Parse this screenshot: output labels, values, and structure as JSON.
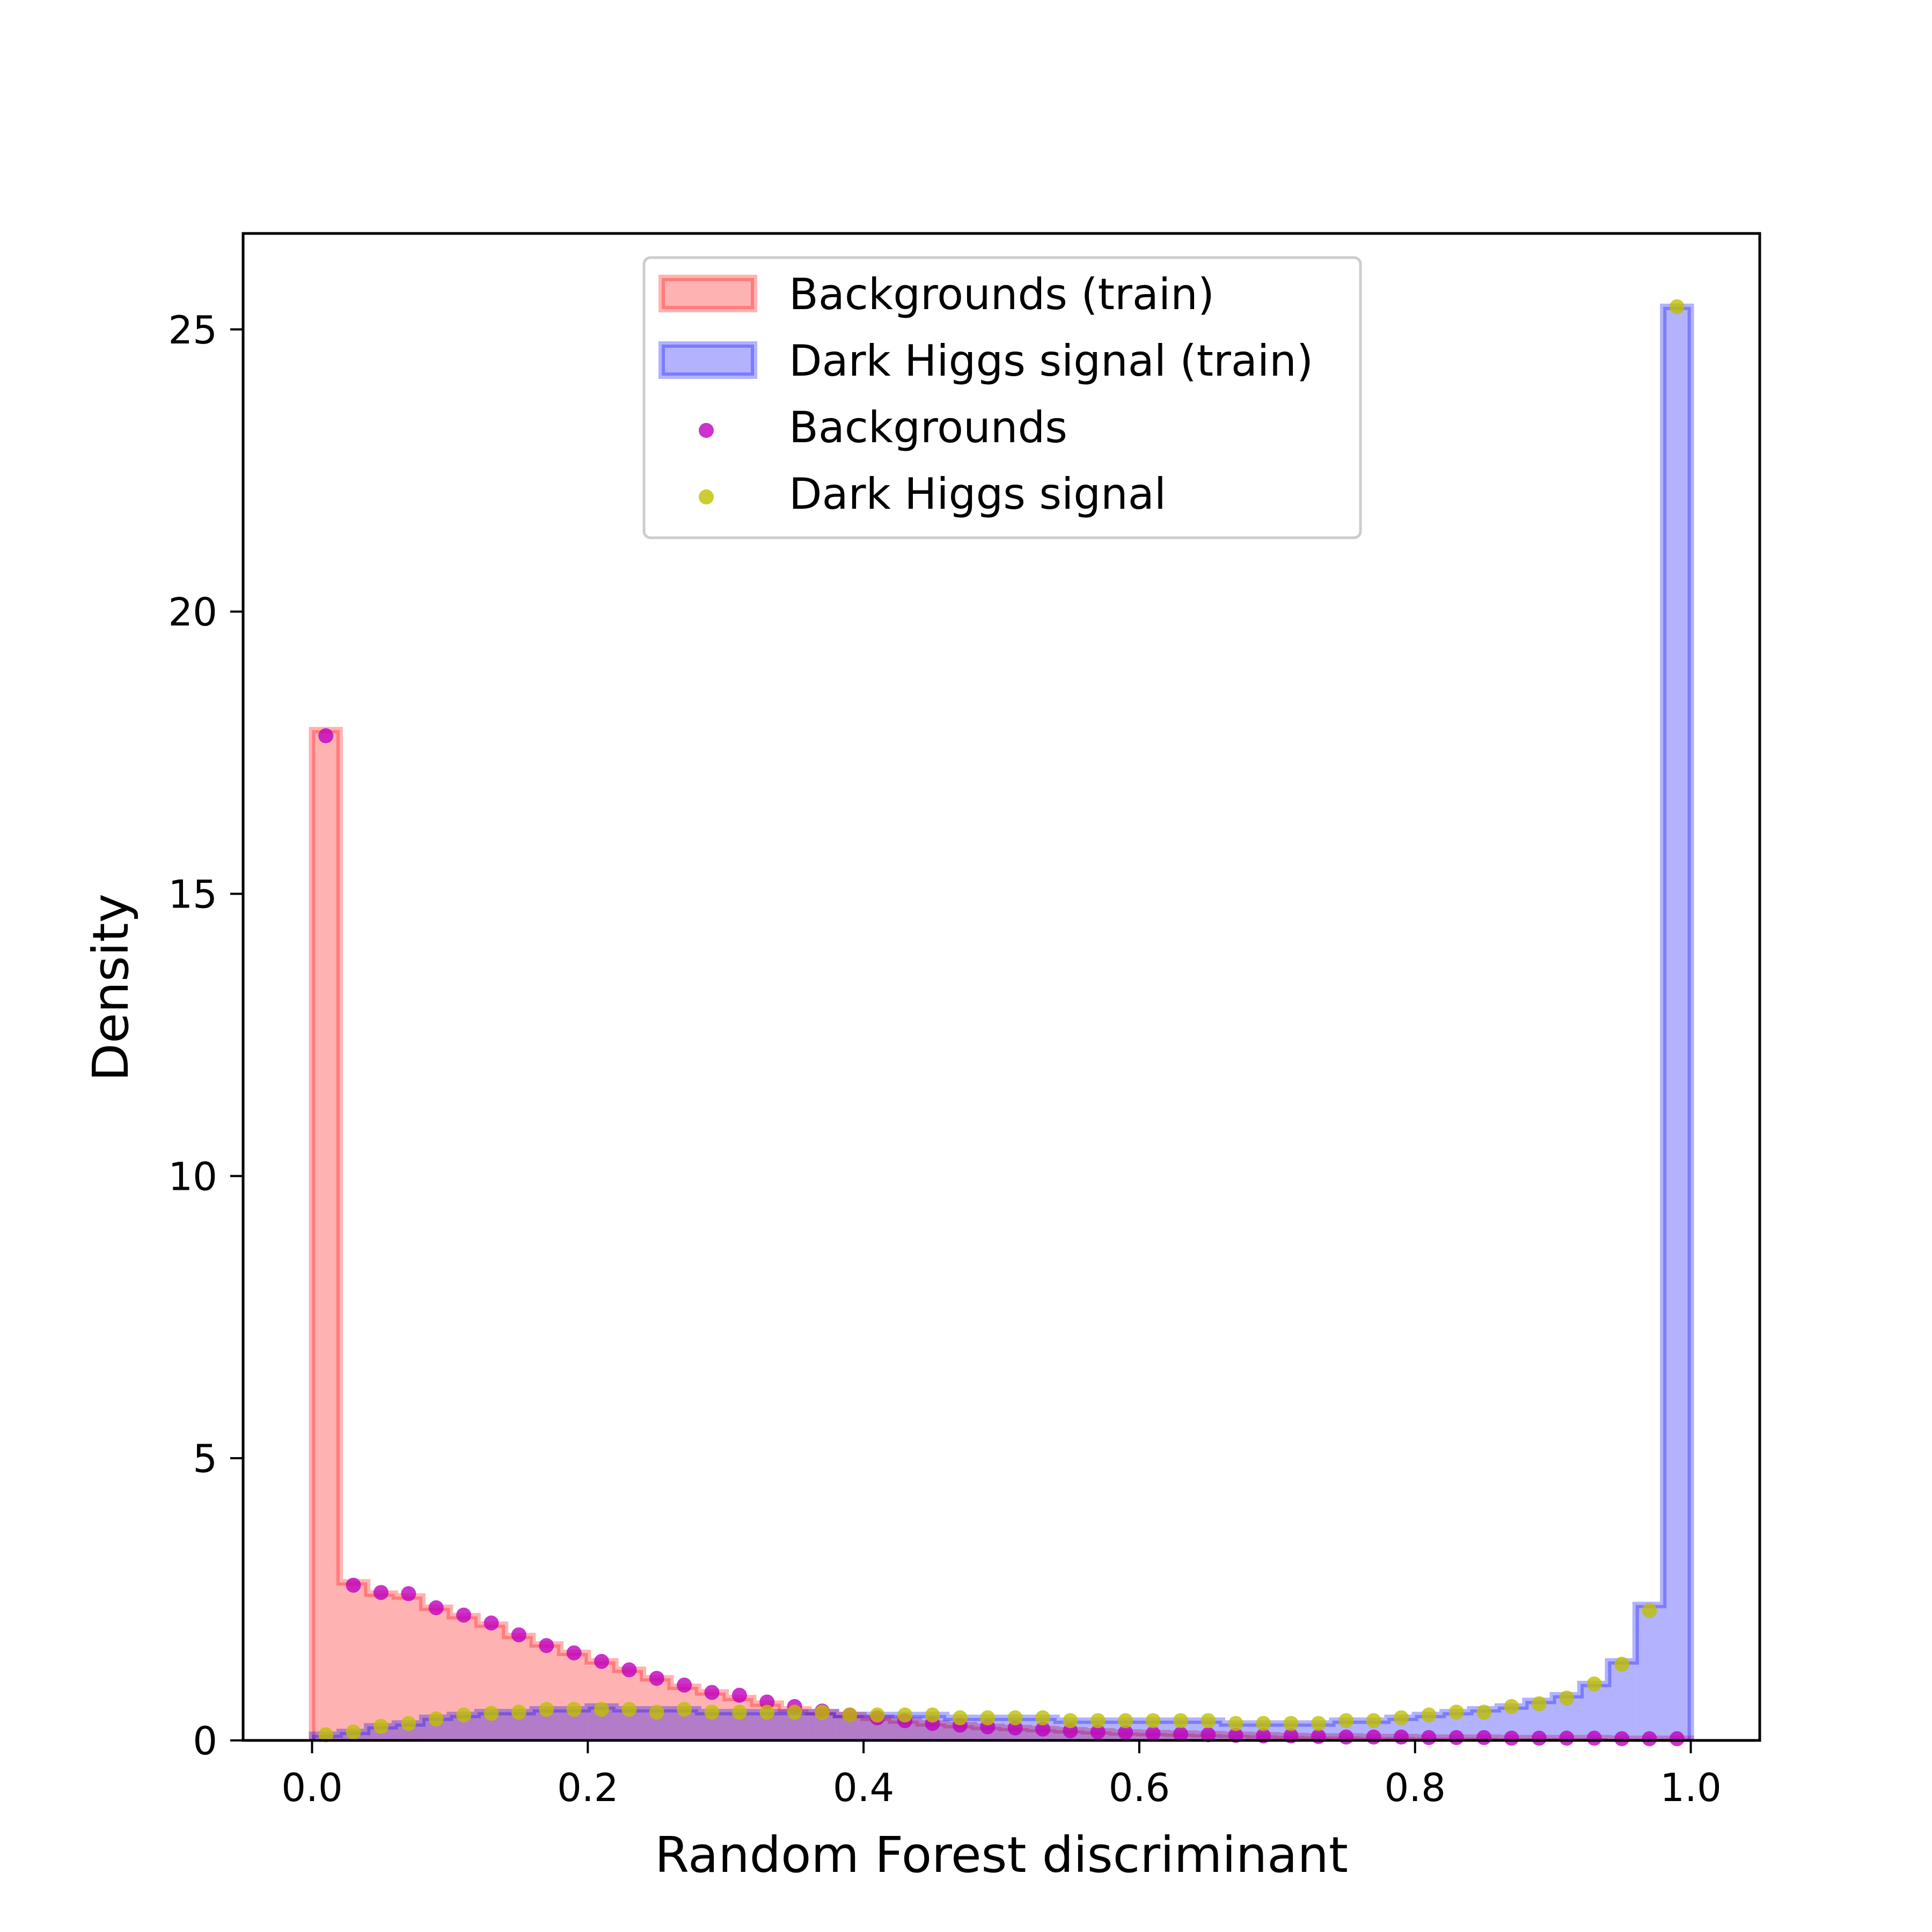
{
  "chart_data": {
    "type": "histogram",
    "xlabel": "Random Forest discriminant",
    "ylabel": "Density",
    "xlim": [
      -0.05,
      1.05
    ],
    "ylim": [
      0,
      26.7
    ],
    "xticks": [
      0.0,
      0.2,
      0.4,
      0.6,
      0.8,
      1.0
    ],
    "xtick_labels": [
      "0.0",
      "0.2",
      "0.4",
      "0.6",
      "0.8",
      "1.0"
    ],
    "yticks": [
      0,
      5,
      10,
      15,
      20,
      25
    ],
    "ytick_labels": [
      "0",
      "5",
      "10",
      "15",
      "20",
      "25"
    ],
    "grid": false,
    "legend_position": "top-center",
    "bin_edges": [
      0.0,
      0.02,
      0.04,
      0.06,
      0.08,
      0.1,
      0.12,
      0.14,
      0.16,
      0.18,
      0.2,
      0.22,
      0.24,
      0.26,
      0.28,
      0.3,
      0.32,
      0.34,
      0.36,
      0.38,
      0.4,
      0.42,
      0.44,
      0.46,
      0.48,
      0.5,
      0.52,
      0.54,
      0.56,
      0.58,
      0.6,
      0.62,
      0.64,
      0.66,
      0.68,
      0.7,
      0.72,
      0.74,
      0.76,
      0.78,
      0.8,
      0.82,
      0.84,
      0.86,
      0.88,
      0.9,
      0.92,
      0.94,
      0.96,
      0.98,
      1.0
    ],
    "series": [
      {
        "name": "Backgrounds (train)",
        "kind": "histogram",
        "color": "#ff0000",
        "values": [
          17.9,
          2.8,
          2.6,
          2.55,
          2.35,
          2.2,
          2.05,
          1.85,
          1.7,
          1.55,
          1.4,
          1.25,
          1.1,
          0.95,
          0.85,
          0.75,
          0.65,
          0.55,
          0.5,
          0.45,
          0.4,
          0.35,
          0.3,
          0.27,
          0.24,
          0.22,
          0.2,
          0.18,
          0.16,
          0.14,
          0.13,
          0.12,
          0.11,
          0.1,
          0.09,
          0.08,
          0.07,
          0.07,
          0.06,
          0.06,
          0.05,
          0.05,
          0.05,
          0.04,
          0.04,
          0.04,
          0.04,
          0.03,
          0.03,
          0.03
        ]
      },
      {
        "name": "Dark Higgs signal (train)",
        "kind": "histogram",
        "color": "#0000ff",
        "values": [
          0.1,
          0.15,
          0.25,
          0.3,
          0.4,
          0.45,
          0.5,
          0.5,
          0.55,
          0.55,
          0.6,
          0.55,
          0.55,
          0.55,
          0.5,
          0.5,
          0.5,
          0.5,
          0.5,
          0.45,
          0.45,
          0.45,
          0.45,
          0.4,
          0.4,
          0.4,
          0.4,
          0.35,
          0.35,
          0.35,
          0.35,
          0.35,
          0.35,
          0.3,
          0.3,
          0.3,
          0.3,
          0.35,
          0.35,
          0.4,
          0.45,
          0.5,
          0.55,
          0.6,
          0.7,
          0.8,
          1.0,
          1.4,
          2.4,
          25.4
        ]
      },
      {
        "name": "Backgrounds",
        "kind": "points",
        "color": "#bf00bf",
        "values": [
          17.8,
          2.75,
          2.62,
          2.6,
          2.35,
          2.22,
          2.08,
          1.87,
          1.68,
          1.55,
          1.4,
          1.25,
          1.1,
          0.98,
          0.85,
          0.8,
          0.68,
          0.6,
          0.52,
          0.45,
          0.4,
          0.35,
          0.3,
          0.27,
          0.24,
          0.22,
          0.2,
          0.17,
          0.15,
          0.14,
          0.12,
          0.11,
          0.1,
          0.09,
          0.08,
          0.08,
          0.07,
          0.06,
          0.06,
          0.06,
          0.05,
          0.05,
          0.05,
          0.04,
          0.04,
          0.04,
          0.04,
          0.03,
          0.03,
          0.03
        ]
      },
      {
        "name": "Dark Higgs signal",
        "kind": "points",
        "color": "#bfbf00",
        "values": [
          0.1,
          0.15,
          0.25,
          0.3,
          0.38,
          0.45,
          0.48,
          0.5,
          0.55,
          0.55,
          0.55,
          0.55,
          0.5,
          0.55,
          0.5,
          0.5,
          0.5,
          0.5,
          0.5,
          0.45,
          0.45,
          0.45,
          0.45,
          0.4,
          0.4,
          0.4,
          0.4,
          0.35,
          0.35,
          0.35,
          0.35,
          0.35,
          0.35,
          0.3,
          0.3,
          0.3,
          0.3,
          0.35,
          0.35,
          0.4,
          0.45,
          0.5,
          0.5,
          0.6,
          0.65,
          0.75,
          1.0,
          1.35,
          2.3,
          25.4
        ]
      }
    ]
  },
  "legend": {
    "items": [
      {
        "label": "Backgrounds (train)"
      },
      {
        "label": "Dark Higgs signal (train)"
      },
      {
        "label": "Backgrounds"
      },
      {
        "label": "Dark Higgs signal"
      }
    ]
  }
}
